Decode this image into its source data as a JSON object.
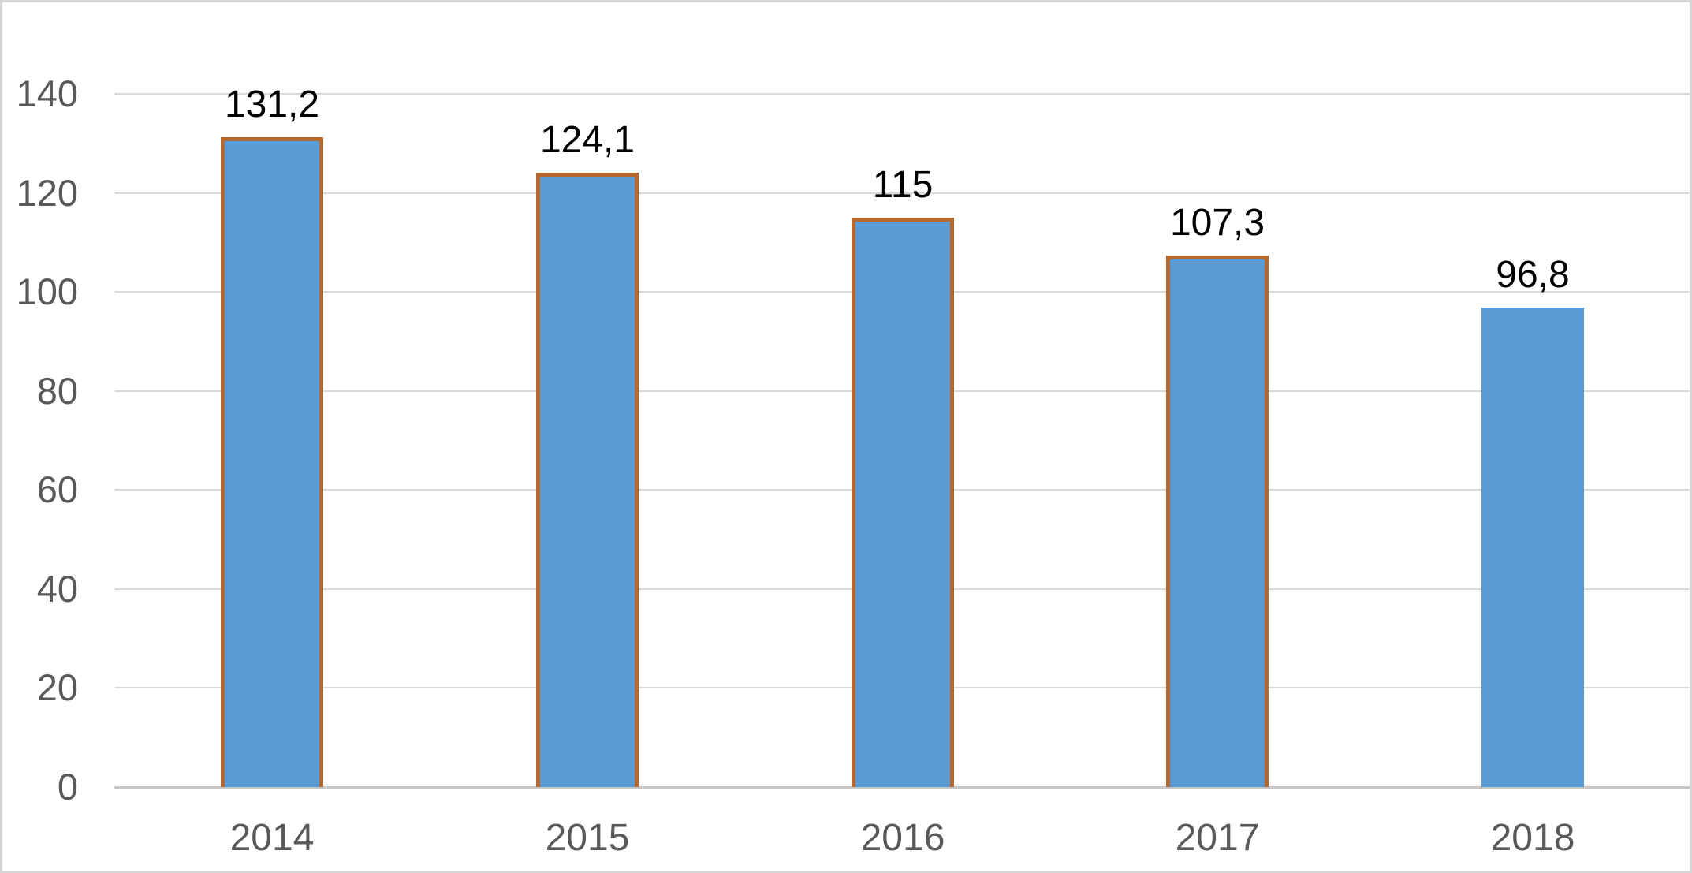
{
  "chart_data": {
    "type": "bar",
    "categories": [
      "2014",
      "2015",
      "2016",
      "2017",
      "2018"
    ],
    "values": [
      131.2,
      124.1,
      115,
      107.3,
      96.8
    ],
    "data_labels": [
      "131,2",
      "124,1",
      "115",
      "107,3",
      "96,8"
    ],
    "yticks": [
      0,
      20,
      40,
      60,
      80,
      100,
      120,
      140
    ],
    "ytick_labels": [
      "0",
      "20",
      "40",
      "60",
      "80",
      "100",
      "120",
      "140"
    ],
    "ylim": [
      0,
      140
    ],
    "grid": true,
    "legend": false,
    "bar_has_border": [
      true,
      true,
      true,
      true,
      false
    ],
    "colors": {
      "bar_fill": "#5B9BD5",
      "bar_border": "#B5682F",
      "gridline": "#D9D9D9",
      "axis_line": "#C6C6C6",
      "axis_text": "#595959",
      "data_label_text": "#000000",
      "frame_border": "#D5D5D5",
      "background": "#FFFFFF"
    }
  }
}
